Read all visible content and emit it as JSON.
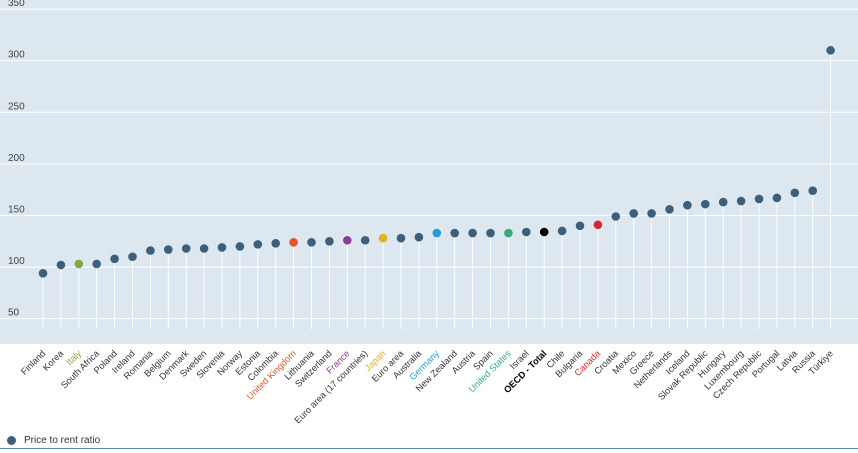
{
  "chart_data": {
    "type": "scatter",
    "categories": [
      "Finland",
      "Korea",
      "Italy",
      "South Africa",
      "Poland",
      "Ireland",
      "Romania",
      "Belgium",
      "Denmark",
      "Sweden",
      "Slovenia",
      "Norway",
      "Estonia",
      "Colombia",
      "United Kingdom",
      "Lithuania",
      "Switzerland",
      "France",
      "Euro area (17 countries)",
      "Japan",
      "Euro area",
      "Australia",
      "Germany",
      "New Zealand",
      "Austria",
      "Spain",
      "United States",
      "Israel",
      "OECD - Total",
      "Chile",
      "Bulgaria",
      "Canada",
      "Croatia",
      "Mexico",
      "Greece",
      "Netherlands",
      "Iceland",
      "Slovak Republic",
      "Hungary",
      "Luxembourg",
      "Czech Republic",
      "Portugal",
      "Latvia",
      "Russia",
      "Türkiye"
    ],
    "series": [
      {
        "name": "Price to rent ratio",
        "values": [
          94,
          102,
          103,
          103,
          108,
          110,
          116,
          117,
          118,
          118,
          119,
          120,
          122,
          123,
          124,
          124,
          125,
          126,
          126,
          128,
          128,
          129,
          133,
          133,
          133,
          133,
          133,
          134,
          134,
          135,
          140,
          141,
          149,
          152,
          152,
          156,
          160,
          161,
          163,
          164,
          166,
          167,
          172,
          174,
          310
        ]
      }
    ],
    "ylim": [
      40,
      360
    ],
    "yticks": [
      50,
      100,
      150,
      200,
      250,
      300,
      350
    ],
    "grid": true,
    "legend": "bottom-left",
    "colors": {
      "default": "#3d5f7a",
      "plot_bg": "#dce7f0",
      "grid": "#ffffff",
      "Italy": "#86a83b",
      "United Kingdom": "#e5532a",
      "France": "#8e3b93",
      "Japan": "#e0b21c",
      "Germany": "#2c9ad6",
      "United States": "#3ca878",
      "OECD - Total": "#000000",
      "Canada": "#d7262d"
    }
  }
}
